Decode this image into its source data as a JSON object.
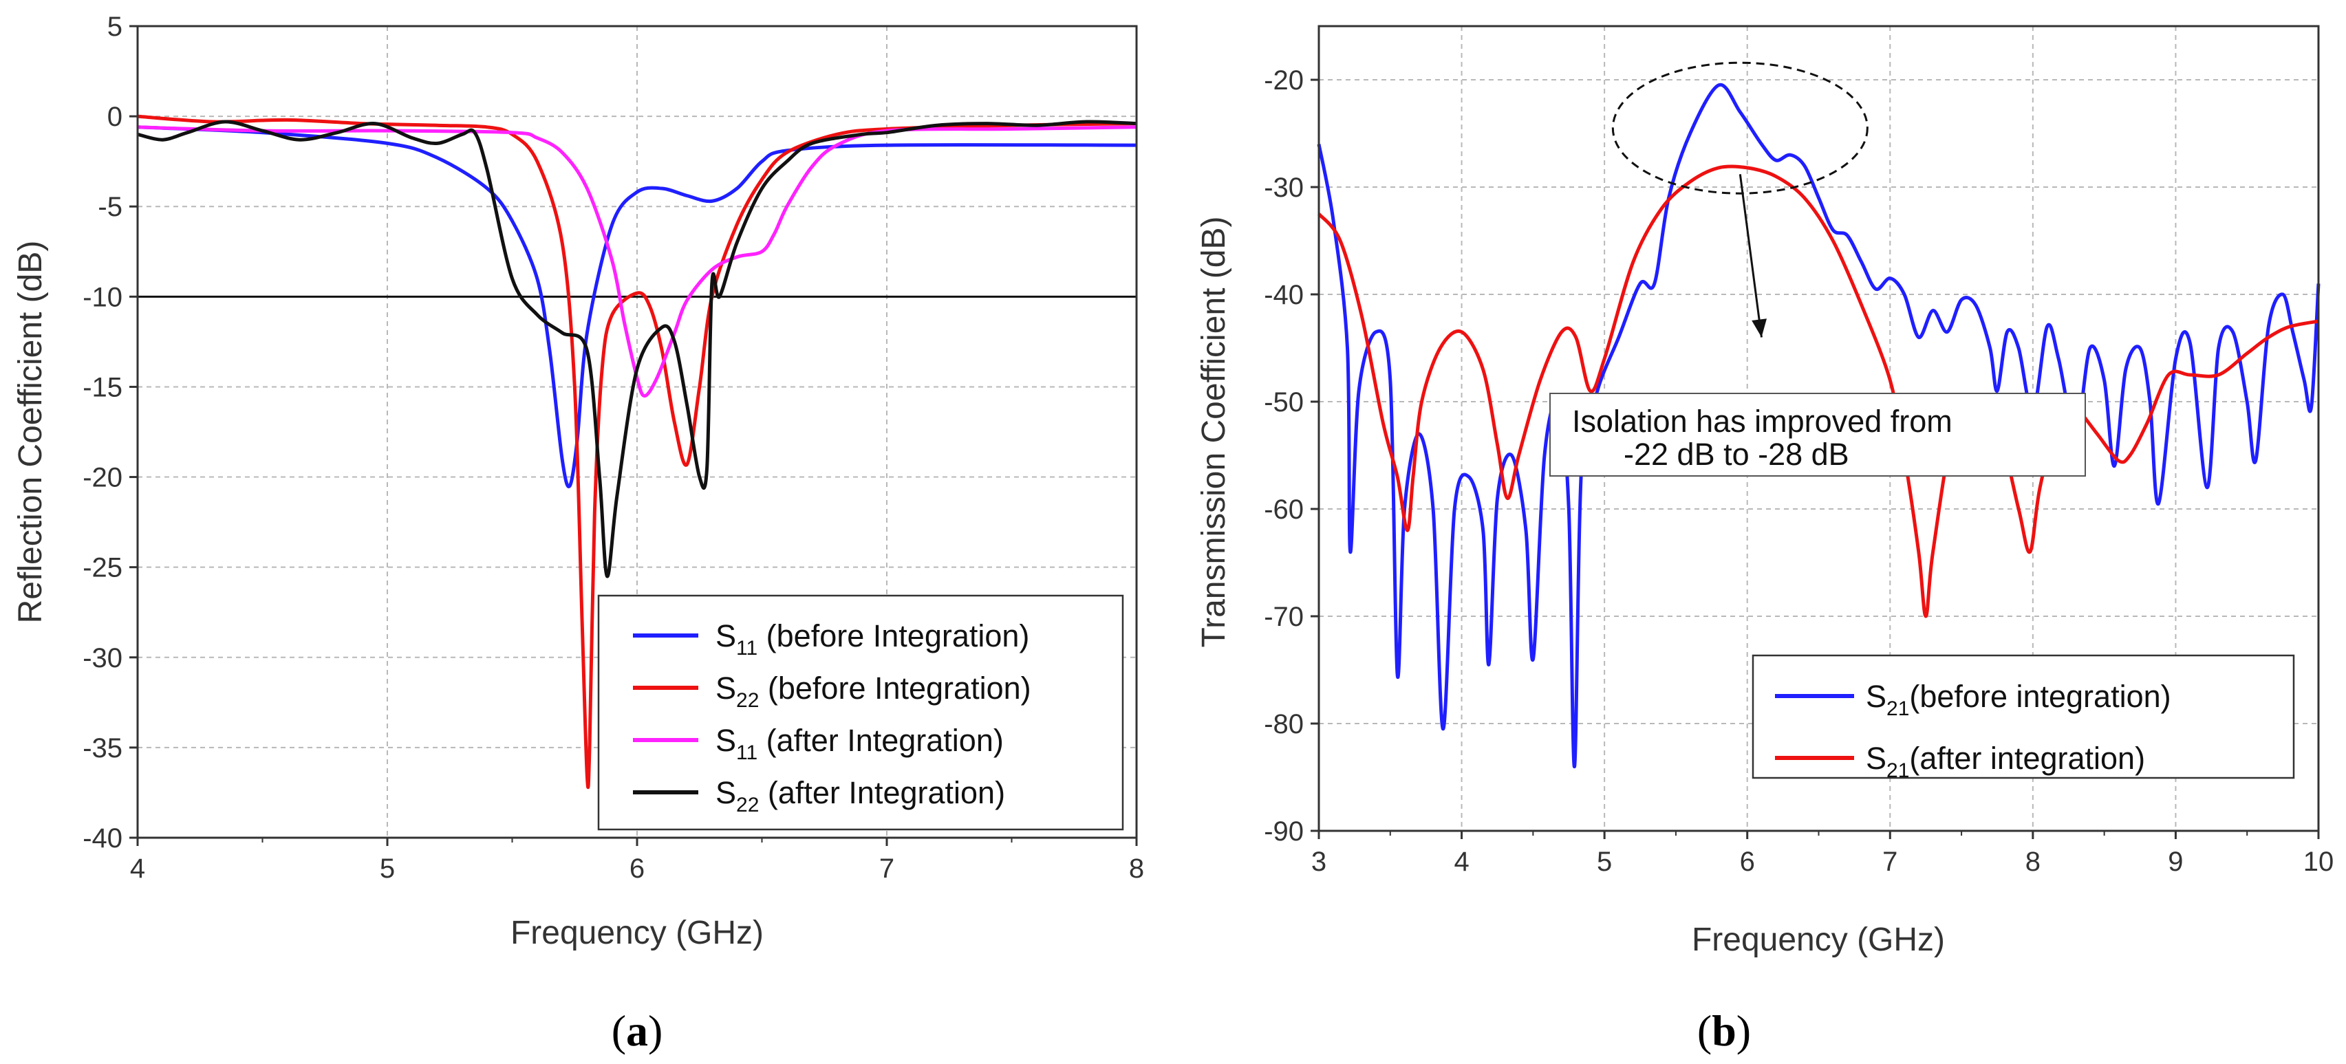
{
  "chart_data": [
    {
      "type": "line",
      "panel": "a",
      "panel_label": "a",
      "xlabel": "Frequency (GHz)",
      "ylabel": "Reflection Coefficient (dB)",
      "xlim": [
        4,
        8
      ],
      "ylim": [
        -40,
        5
      ],
      "xticks": [
        4,
        5,
        6,
        7,
        8
      ],
      "yticks": [
        5,
        0,
        -5,
        -10,
        -15,
        -20,
        -25,
        -30,
        -35,
        -40
      ],
      "grid": true,
      "reference_line_y": -10,
      "legend_position": "bottom-right",
      "series": [
        {
          "name": "S11 (before Integration)",
          "symbol": "S",
          "subscript": "11",
          "suffix": " (before Integration)",
          "color": "#1f1fff",
          "x": [
            4.0,
            4.5,
            5.0,
            5.2,
            5.4,
            5.5,
            5.6,
            5.65,
            5.7,
            5.73,
            5.76,
            5.8,
            5.9,
            6.0,
            6.1,
            6.2,
            6.3,
            6.4,
            6.5,
            6.6,
            7.0,
            8.0
          ],
          "y": [
            -0.6,
            -0.9,
            -1.5,
            -2.3,
            -4.0,
            -5.8,
            -9.0,
            -13.0,
            -19.0,
            -20.5,
            -18.0,
            -12.0,
            -6.0,
            -4.2,
            -4.0,
            -4.4,
            -4.7,
            -4.0,
            -2.5,
            -1.9,
            -1.6,
            -1.6
          ]
        },
        {
          "name": "S22 (before Integration)",
          "symbol": "S",
          "subscript": "22",
          "suffix": " (before Integration)",
          "color": "#ee1111",
          "x": [
            4.0,
            4.3,
            4.6,
            4.9,
            5.2,
            5.4,
            5.5,
            5.6,
            5.7,
            5.75,
            5.78,
            5.8,
            5.81,
            5.83,
            5.86,
            5.9,
            6.0,
            6.05,
            6.1,
            6.15,
            6.2,
            6.25,
            6.3,
            6.4,
            6.5,
            6.6,
            6.8,
            7.0,
            7.5,
            8.0
          ],
          "y": [
            0.0,
            -0.3,
            -0.2,
            -0.4,
            -0.5,
            -0.6,
            -1.0,
            -2.5,
            -7.0,
            -15.0,
            -28.0,
            -36.6,
            -35.0,
            -22.0,
            -14.0,
            -11.0,
            -9.8,
            -10.5,
            -13.0,
            -17.0,
            -19.3,
            -15.0,
            -10.0,
            -6.0,
            -3.5,
            -2.0,
            -1.0,
            -0.7,
            -0.5,
            -0.4
          ]
        },
        {
          "name": "S11 (after Integration)",
          "symbol": "S",
          "subscript": "11",
          "suffix": " (after Integration)",
          "color": "#ff22ff",
          "x": [
            4.0,
            4.5,
            5.0,
            5.5,
            5.6,
            5.7,
            5.8,
            5.9,
            5.95,
            6.0,
            6.03,
            6.08,
            6.15,
            6.2,
            6.3,
            6.4,
            6.5,
            6.55,
            6.6,
            6.7,
            6.8,
            7.0,
            7.5,
            8.0
          ],
          "y": [
            -0.6,
            -0.8,
            -0.8,
            -0.9,
            -1.2,
            -2.0,
            -4.0,
            -8.0,
            -11.5,
            -14.5,
            -15.5,
            -14.5,
            -12.0,
            -10.2,
            -8.5,
            -7.8,
            -7.5,
            -6.5,
            -5.0,
            -2.8,
            -1.6,
            -0.8,
            -0.7,
            -0.6
          ]
        },
        {
          "name": "S22 (after Integration)",
          "symbol": "S",
          "subscript": "22",
          "suffix": " (after Integration)",
          "color": "#111111",
          "x": [
            4.0,
            4.1,
            4.2,
            4.35,
            4.5,
            4.65,
            4.8,
            4.95,
            5.1,
            5.2,
            5.3,
            5.35,
            5.4,
            5.5,
            5.6,
            5.7,
            5.8,
            5.85,
            5.88,
            5.92,
            6.0,
            6.1,
            6.15,
            6.2,
            6.25,
            6.28,
            6.3,
            6.33,
            6.4,
            6.5,
            6.6,
            6.7,
            6.9,
            7.0,
            7.2,
            7.4,
            7.6,
            7.8,
            8.0
          ],
          "y": [
            -1.0,
            -1.3,
            -0.9,
            -0.3,
            -0.8,
            -1.3,
            -0.9,
            -0.4,
            -1.2,
            -1.5,
            -1.0,
            -0.9,
            -3.0,
            -9.0,
            -11.0,
            -12.0,
            -13.0,
            -20.0,
            -25.5,
            -21.0,
            -14.0,
            -11.7,
            -12.5,
            -16.0,
            -20.0,
            -19.5,
            -9.2,
            -10.0,
            -7.0,
            -4.0,
            -2.5,
            -1.5,
            -1.0,
            -0.9,
            -0.5,
            -0.4,
            -0.5,
            -0.3,
            -0.4
          ]
        }
      ]
    },
    {
      "type": "line",
      "panel": "b",
      "panel_label": "b",
      "xlabel": "Frequency (GHz)",
      "ylabel": "Transmission Coefficient (dB)",
      "xlim": [
        3,
        10
      ],
      "ylim": [
        -90,
        -15
      ],
      "xticks": [
        3,
        4,
        5,
        6,
        7,
        8,
        9,
        10
      ],
      "yticks": [
        -20,
        -30,
        -40,
        -50,
        -60,
        -70,
        -80,
        -90
      ],
      "grid": true,
      "legend_position": "bottom-right",
      "annotation": {
        "lines": [
          "Isolation has improved from",
          "-22 dB to -28 dB"
        ],
        "ellipse_center": [
          5.95,
          -24.5
        ],
        "arrow_from": [
          5.95,
          -28.8
        ],
        "arrow_to": [
          6.1,
          -44.0
        ]
      },
      "series": [
        {
          "name": "S21(before integration)",
          "symbol": "S",
          "subscript": "21",
          "suffix": "(before integration)",
          "color": "#1f1fff",
          "x": [
            3.0,
            3.1,
            3.2,
            3.22,
            3.28,
            3.4,
            3.5,
            3.55,
            3.6,
            3.7,
            3.8,
            3.87,
            3.95,
            4.05,
            4.15,
            4.19,
            4.25,
            4.35,
            4.45,
            4.5,
            4.58,
            4.68,
            4.75,
            4.79,
            4.84,
            4.95,
            5.1,
            5.25,
            5.35,
            5.45,
            5.6,
            5.8,
            5.95,
            6.1,
            6.2,
            6.3,
            6.4,
            6.5,
            6.6,
            6.7,
            6.8,
            6.9,
            7.0,
            7.1,
            7.2,
            7.3,
            7.4,
            7.5,
            7.6,
            7.7,
            7.75,
            7.82,
            7.9,
            8.0,
            8.1,
            8.18,
            8.3,
            8.4,
            8.5,
            8.57,
            8.65,
            8.75,
            8.82,
            8.88,
            9.0,
            9.1,
            9.22,
            9.3,
            9.4,
            9.5,
            9.56,
            9.65,
            9.75,
            9.82,
            9.9,
            9.95,
            10.0
          ],
          "y": [
            -26,
            -33,
            -45,
            -64,
            -49,
            -43.5,
            -48,
            -75.5,
            -60,
            -53,
            -60,
            -80.5,
            -60,
            -57,
            -62,
            -74.5,
            -59,
            -55,
            -62,
            -74,
            -55,
            -50,
            -60,
            -84,
            -56,
            -49,
            -44,
            -39,
            -39,
            -31,
            -25,
            -20.5,
            -23,
            -26,
            -27.5,
            -27,
            -28,
            -31,
            -34,
            -34.5,
            -37,
            -39.5,
            -38.5,
            -40,
            -44,
            -41.5,
            -43.5,
            -40.5,
            -41,
            -45,
            -49,
            -43.5,
            -45,
            -51,
            -43,
            -46,
            -53,
            -45,
            -48,
            -56,
            -47,
            -45,
            -50,
            -59.5,
            -46,
            -44.5,
            -58,
            -45,
            -43.5,
            -50,
            -55.5,
            -43,
            -40,
            -43.5,
            -48,
            -50.5,
            -39
          ]
        },
        {
          "name": "S21(after integration)",
          "symbol": "S",
          "subscript": "21",
          "suffix": "(after integration)",
          "color": "#ee1111",
          "x": [
            3.0,
            3.15,
            3.3,
            3.45,
            3.55,
            3.62,
            3.66,
            3.72,
            3.85,
            4.0,
            4.15,
            4.25,
            4.32,
            4.4,
            4.55,
            4.7,
            4.8,
            4.9,
            5.0,
            5.2,
            5.4,
            5.6,
            5.8,
            6.0,
            6.2,
            6.4,
            6.6,
            6.8,
            7.0,
            7.1,
            7.2,
            7.25,
            7.3,
            7.45,
            7.6,
            7.75,
            7.9,
            7.98,
            8.05,
            8.2,
            8.3,
            8.45,
            8.6,
            8.68,
            8.8,
            8.95,
            9.1,
            9.3,
            9.5,
            9.65,
            9.8,
            10.0
          ],
          "y": [
            -32.5,
            -35,
            -42,
            -52,
            -57,
            -62,
            -57,
            -50,
            -45,
            -43.5,
            -47,
            -54,
            -59,
            -55,
            -48,
            -43.5,
            -44,
            -49,
            -46,
            -37,
            -32,
            -29.5,
            -28.2,
            -28.2,
            -29,
            -31,
            -35,
            -41,
            -48,
            -55,
            -64,
            -70,
            -64,
            -52,
            -50.5,
            -52,
            -60,
            -64,
            -58,
            -50,
            -50.5,
            -53,
            -55.5,
            -55,
            -52,
            -47.5,
            -47.5,
            -47.5,
            -45.5,
            -44,
            -43,
            -42.5
          ]
        }
      ]
    }
  ]
}
